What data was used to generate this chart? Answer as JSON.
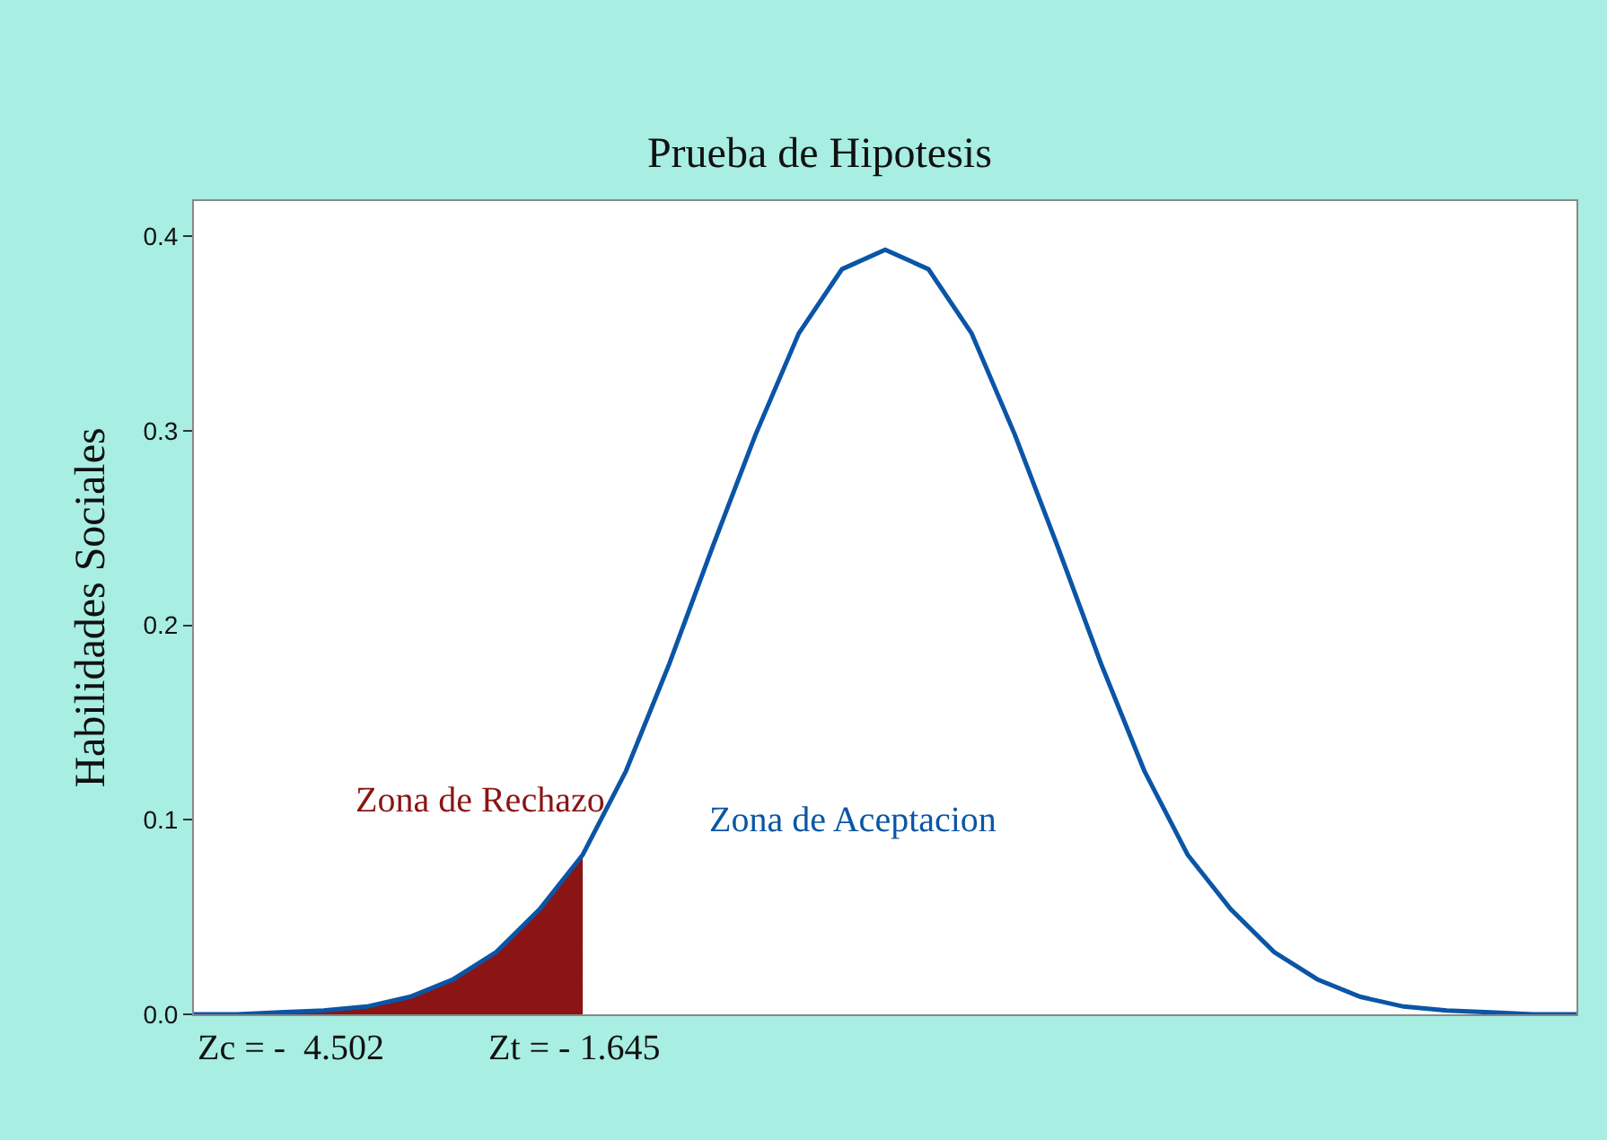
{
  "chart_data": {
    "type": "line",
    "title": "Prueba de Hipotesis",
    "ylabel": "Habilidades Sociales",
    "categories": [
      null,
      null,
      null,
      null,
      null,
      null,
      null,
      null,
      null,
      null,
      null,
      null,
      null,
      null,
      null,
      null,
      null,
      null,
      null,
      null,
      null,
      null,
      null,
      null,
      null,
      null,
      null,
      null,
      null,
      null,
      null,
      null,
      null
    ],
    "ylim": [
      0,
      0.418
    ],
    "yticks": [
      {
        "value": 0,
        "label": "0.0"
      },
      0.1,
      0.2,
      0.3,
      0.4
    ],
    "grid": false,
    "legend": false,
    "marker": "none",
    "line_style": "solid",
    "series": [
      {
        "name": "Zona de Aceptacion",
        "color": "#0b55a6",
        "values": [
          0.0,
          0.0,
          0.001,
          0.002,
          0.004,
          0.009,
          0.018,
          0.032,
          0.054,
          0.082,
          0.125,
          0.18,
          0.24,
          0.298,
          0.35,
          0.383,
          0.393,
          0.383,
          0.35,
          0.298,
          0.24,
          0.18,
          0.125,
          0.082,
          0.054,
          0.032,
          0.018,
          0.009,
          0.004,
          0.002,
          0.001,
          0.0,
          0.0
        ]
      },
      {
        "name": "Zona de Rechazo",
        "type": "area",
        "color": "#8b1414",
        "values": [
          0.0,
          0.0,
          0.001,
          0.002,
          0.004,
          0.009,
          0.018,
          0.032,
          0.054,
          0.082,
          null,
          null,
          null,
          null,
          null,
          null,
          null,
          null,
          null,
          null,
          null,
          null,
          null,
          null,
          null,
          null,
          null,
          null,
          null,
          null,
          null,
          null,
          null
        ]
      }
    ],
    "annotations": [
      "Zc = -  4.502",
      "Zt = - 1.645"
    ]
  }
}
